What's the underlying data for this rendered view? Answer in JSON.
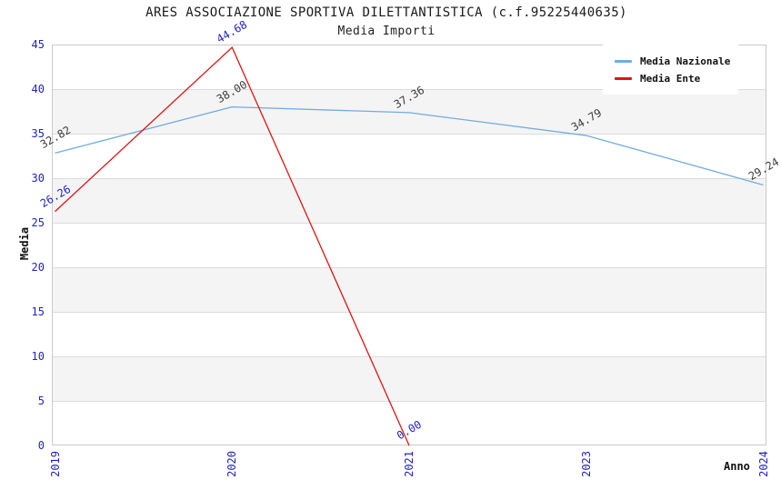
{
  "chart_data": {
    "type": "line",
    "title": "ARES ASSOCIAZIONE SPORTIVA DILETTANTISTICA (c.f.95225440635)",
    "subtitle": "Media Importi",
    "xlabel": "Anno",
    "ylabel": "Media",
    "categories": [
      "2019",
      "2020",
      "2021",
      "2023",
      "2024"
    ],
    "series": [
      {
        "name": "Media Nazionale",
        "color": "#74abdd",
        "label_color": "#3c3c3c",
        "values": [
          32.82,
          38.0,
          37.36,
          34.79,
          29.24
        ],
        "point_labels": [
          "32.82",
          "38.00",
          "37.36",
          "34.79",
          "29.24"
        ]
      },
      {
        "name": "Media Ente",
        "color": "#dd1515",
        "label_color": "#2222c2",
        "values": [
          26.26,
          44.68,
          0.0,
          null,
          null
        ],
        "point_labels": [
          "26.26",
          "44.68",
          "0.00",
          null,
          null
        ]
      }
    ],
    "ylim": [
      0,
      45
    ],
    "y_ticks": [
      0,
      5,
      10,
      15,
      20,
      25,
      30,
      35,
      40,
      45
    ],
    "grid": "horizontal",
    "legend_position": "top-right"
  },
  "colors": {
    "tick_label_blue": "#2222c2",
    "band_gray": "#f4f4f4",
    "gridline_gray": "#dcdcdc",
    "spine_gray": "#c9c9c9",
    "background": "#ffffff"
  }
}
